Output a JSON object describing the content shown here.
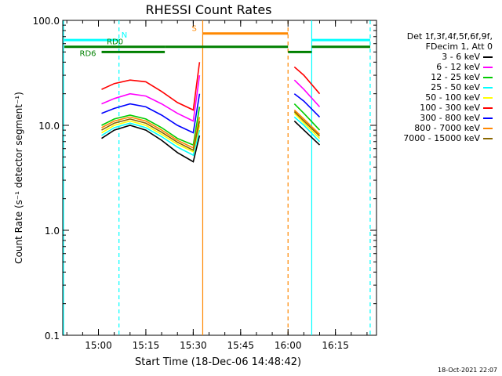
{
  "chart_data": {
    "type": "line",
    "title": "RHESSI Count Rates",
    "xlabel": "Start Time (18-Dec-06 14:48:42)",
    "ylabel": "Count Rate (s⁻¹ detector segment⁻¹)",
    "yscale": "log",
    "ylim": [
      0.1,
      100.0
    ],
    "xlim": [
      "14:48:42",
      "16:28:00"
    ],
    "ytick_labels": [
      "0.1",
      "1.0",
      "10.0",
      "100.0"
    ],
    "ytick_values": [
      0.1,
      1.0,
      10.0,
      100.0
    ],
    "xtick_labels": [
      "15:00",
      "15:15",
      "15:30",
      "15:45",
      "16:00",
      "16:15"
    ],
    "xtick_values": [
      "15:00",
      "15:15",
      "15:30",
      "15:45",
      "16:00",
      "16:15"
    ],
    "legend_header": [
      "Det 1f,3f,4f,5f,6f,9f,",
      "FDecim 1, Att 0"
    ],
    "legend_placement": "right",
    "series": [
      {
        "name": "3 - 6 keV",
        "color": "#000000",
        "x": [
          "15:01",
          "15:05",
          "15:10",
          "15:15",
          "15:20",
          "15:25",
          "15:30",
          "15:32",
          "16:02",
          "16:05",
          "16:10"
        ],
        "y": [
          7.5,
          9.0,
          10.0,
          9.0,
          7.2,
          5.5,
          4.5,
          8.0,
          11.0,
          9.0,
          6.5
        ]
      },
      {
        "name": "6 - 12 keV",
        "color": "#ff00ff",
        "x": [
          "15:01",
          "15:05",
          "15:10",
          "15:15",
          "15:20",
          "15:25",
          "15:30",
          "15:32",
          "16:02",
          "16:05",
          "16:10"
        ],
        "y": [
          16.0,
          18.0,
          20.0,
          19.0,
          16.0,
          13.0,
          11.0,
          30.0,
          27.0,
          22.0,
          15.0
        ]
      },
      {
        "name": "12 - 25 keV",
        "color": "#00cc00",
        "x": [
          "15:01",
          "15:05",
          "15:10",
          "15:15",
          "15:20",
          "15:25",
          "15:30",
          "15:32",
          "16:02",
          "16:05",
          "16:10"
        ],
        "y": [
          10.0,
          11.5,
          12.5,
          11.5,
          9.5,
          7.5,
          6.5,
          15.0,
          16.0,
          13.0,
          9.0
        ]
      },
      {
        "name": "25 - 50 keV",
        "color": "#00ffff",
        "x": [
          "15:01",
          "15:05",
          "15:10",
          "15:15",
          "15:20",
          "15:25",
          "15:30",
          "15:32",
          "16:02",
          "16:05",
          "16:10"
        ],
        "y": [
          8.0,
          9.5,
          10.5,
          9.5,
          7.8,
          6.2,
          5.2,
          9.0,
          12.0,
          10.0,
          7.0
        ]
      },
      {
        "name": "50 - 100 keV",
        "color": "#ffff00",
        "x": [
          "15:01",
          "15:05",
          "15:10",
          "15:15",
          "15:20",
          "15:25",
          "15:30",
          "15:32",
          "16:02",
          "16:05",
          "16:10"
        ],
        "y": [
          8.5,
          10.0,
          11.0,
          10.0,
          8.2,
          6.6,
          5.6,
          10.0,
          13.0,
          10.5,
          7.5
        ]
      },
      {
        "name": "100 - 300 keV",
        "color": "#ff0000",
        "x": [
          "15:01",
          "15:05",
          "15:10",
          "15:15",
          "15:20",
          "15:25",
          "15:30",
          "15:32",
          "16:02",
          "16:05",
          "16:10"
        ],
        "y": [
          22.0,
          25.0,
          27.0,
          26.0,
          21.0,
          16.5,
          14.0,
          40.0,
          36.0,
          30.0,
          20.0
        ]
      },
      {
        "name": "300 - 800 keV",
        "color": "#0000ff",
        "x": [
          "15:01",
          "15:05",
          "15:10",
          "15:15",
          "15:20",
          "15:25",
          "15:30",
          "15:32",
          "16:02",
          "16:05",
          "16:10"
        ],
        "y": [
          13.0,
          14.5,
          16.0,
          15.0,
          12.5,
          10.0,
          8.5,
          20.0,
          20.0,
          17.0,
          12.0
        ]
      },
      {
        "name": "800 - 7000 keV",
        "color": "#ff8800",
        "x": [
          "15:01",
          "15:05",
          "15:10",
          "15:15",
          "15:20",
          "15:25",
          "15:30",
          "15:32",
          "16:02",
          "16:05",
          "16:10"
        ],
        "y": [
          9.5,
          11.0,
          12.0,
          11.0,
          9.0,
          7.2,
          6.1,
          12.0,
          14.0,
          11.5,
          8.2
        ]
      },
      {
        "name": "7000 - 15000 keV",
        "color": "#886600",
        "x": [
          "15:01",
          "15:05",
          "15:10",
          "15:15",
          "15:20",
          "15:25",
          "15:30",
          "15:32",
          "16:02",
          "16:05",
          "16:10"
        ],
        "y": [
          9.0,
          10.5,
          11.5,
          10.5,
          8.6,
          6.9,
          5.8,
          11.0,
          13.5,
          11.0,
          7.9
        ]
      }
    ],
    "vertical_markers": [
      {
        "time": "14:48:42",
        "color": "#00ffff",
        "style": "solid"
      },
      {
        "time": "15:06:30",
        "color": "#00ffff",
        "style": "dashed"
      },
      {
        "time": "15:33:00",
        "color": "#ff8800",
        "style": "solid"
      },
      {
        "time": "16:00:00",
        "color": "#ff8800",
        "style": "dashed"
      },
      {
        "time": "16:07:30",
        "color": "#00ffff",
        "style": "solid"
      },
      {
        "time": "16:26:00",
        "color": "#00ffff",
        "style": "dashed"
      }
    ],
    "state_bars": [
      {
        "label": "N",
        "label_color": "#00ffff",
        "color": "#00ffff",
        "y": 65.0,
        "segments": [
          [
            "14:48:42",
            "15:06:30"
          ],
          [
            "16:07:30",
            "16:26:00"
          ]
        ]
      },
      {
        "label": "S",
        "label_color": "#ff8800",
        "color": "#ff8800",
        "y": 75.0,
        "segments": [
          [
            "15:33:00",
            "16:00:00"
          ]
        ]
      },
      {
        "label": "RD0",
        "label_color": "#008000",
        "color": "#008000",
        "y": 56.0,
        "segments": [
          [
            "14:48:42",
            "15:21:00"
          ],
          [
            "15:21:00",
            "15:33:00"
          ],
          [
            "15:33:00",
            "16:00:00"
          ],
          [
            "16:07:30",
            "16:26:00"
          ]
        ]
      },
      {
        "label": "RD6",
        "label_color": "#008000",
        "color": "#008000",
        "y": 50.0,
        "segments": [
          [
            "15:01:00",
            "15:21:00"
          ],
          [
            "16:00:00",
            "16:07:30"
          ]
        ]
      }
    ]
  },
  "footer_timestamp": "18-Oct-2021 22:07"
}
